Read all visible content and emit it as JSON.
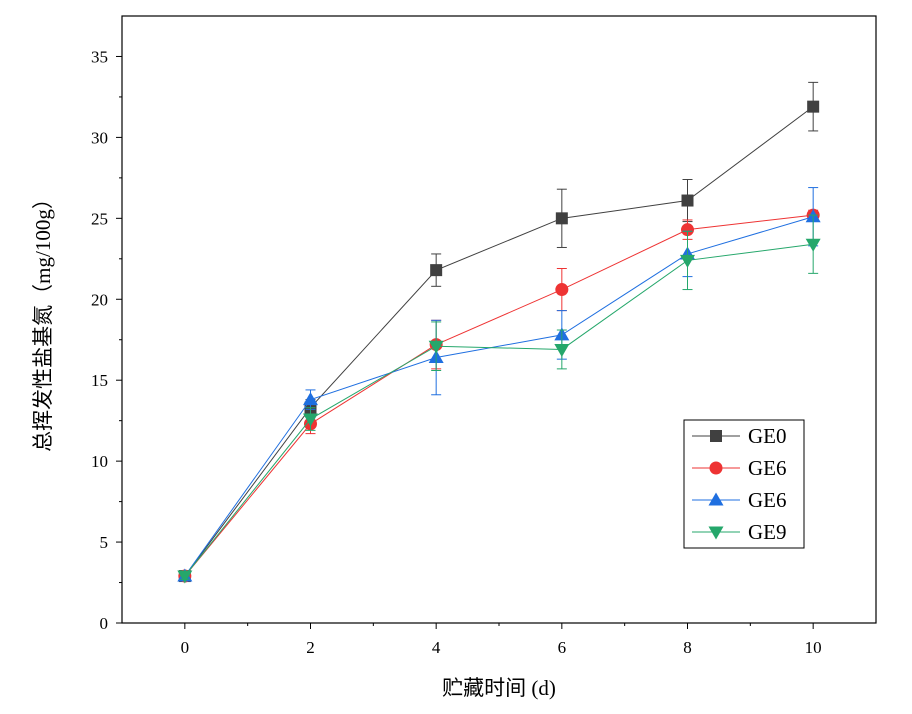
{
  "chart_data": {
    "type": "line",
    "xlabel": "贮藏时间 (d)",
    "ylabel": "总挥发性盐基氮（mg/100g）",
    "xlim": [
      -1,
      11
    ],
    "ylim": [
      0,
      37.5
    ],
    "x_ticks": [
      0,
      2,
      4,
      6,
      8,
      10
    ],
    "y_ticks": [
      0,
      5,
      10,
      15,
      20,
      25,
      30,
      35
    ],
    "legend_position": "bottom-right",
    "x": [
      0,
      2,
      4,
      6,
      8,
      10
    ],
    "series": [
      {
        "name": "GE0",
        "marker": "square",
        "color": "#404040",
        "line_color": "#404040",
        "values": [
          2.9,
          13.3,
          21.8,
          25.0,
          26.1,
          31.9
        ],
        "errors": [
          0.2,
          0.5,
          1.0,
          1.8,
          1.3,
          1.5
        ]
      },
      {
        "name": "GE6",
        "marker": "circle",
        "color": "#ee3333",
        "line_color": "#ee3333",
        "values": [
          2.9,
          12.3,
          17.2,
          20.6,
          24.3,
          25.2
        ],
        "errors": [
          0.2,
          0.6,
          1.5,
          1.3,
          0.6,
          0.3
        ]
      },
      {
        "name": "GE6",
        "marker": "triangle-up",
        "color": "#1f6fe0",
        "line_color": "#1f6fe0",
        "values": [
          2.9,
          13.8,
          16.4,
          17.8,
          22.8,
          25.1
        ],
        "errors": [
          0.2,
          0.6,
          2.3,
          1.5,
          1.4,
          1.8
        ]
      },
      {
        "name": "GE9",
        "marker": "triangle-down",
        "color": "#25a76b",
        "line_color": "#25a76b",
        "values": [
          2.9,
          12.6,
          17.1,
          16.9,
          22.4,
          23.4
        ],
        "errors": [
          0.2,
          0.7,
          1.5,
          1.2,
          1.8,
          1.8
        ]
      }
    ]
  }
}
